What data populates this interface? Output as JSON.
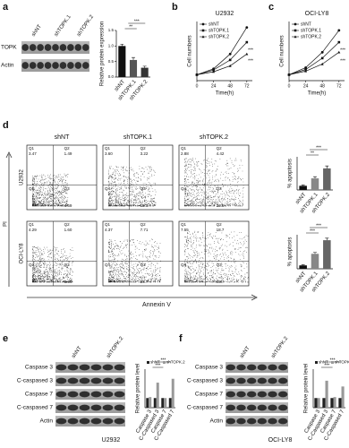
{
  "figure": {
    "panel_letters": [
      "a",
      "b",
      "c",
      "d",
      "e",
      "f"
    ],
    "blot_a": {
      "lanes": [
        "shNT",
        "shTOPK.1",
        "shTOPK.2"
      ],
      "rows": [
        "TOPK",
        "Actin"
      ]
    },
    "flow": {
      "columns": [
        "shNT",
        "shTOPK.1",
        "shTOPK.2"
      ],
      "rows": [
        "U2932",
        "OCI-LY8"
      ],
      "y_label": "PI",
      "x_label": "Annexin V",
      "quadrant_names": [
        "Q1",
        "Q2",
        "Q3",
        "Q4"
      ],
      "percentages": [
        [
          [
            "3.47",
            "1.49",
            "4.69"
          ],
          [
            "3.60",
            "3.22",
            "12.3"
          ],
          [
            "2.88",
            "4.42",
            "23.5"
          ]
        ],
        [
          [
            "4.29",
            "1.60",
            "3.66"
          ],
          [
            "4.37",
            "7.71",
            "15.7"
          ],
          [
            "7.55",
            "18.7",
            "25.7"
          ]
        ]
      ]
    },
    "blot_e": {
      "lanes": [
        "shNT",
        "shTOPK.2"
      ],
      "rows": [
        "Caspase 3",
        "C-caspased 3",
        "Caspase 7",
        "C-caspased 7",
        "Actin"
      ]
    },
    "blot_f": {
      "lanes": [
        "shNT",
        "shTOPK.2"
      ],
      "rows": [
        "Caspase 3",
        "C-caspased 3",
        "Caspase 7",
        "C-caspased 7",
        "Actin"
      ]
    }
  },
  "chart_data": [
    {
      "type": "bar",
      "y_label": "Relative protein expression",
      "categories": [
        "shNT",
        "shTOPK.1",
        "shTOPK.2"
      ],
      "values": [
        1.0,
        0.55,
        0.3
      ],
      "errors": [
        0.06,
        0.08,
        0.05
      ],
      "colors": [
        "#111111",
        "#555555",
        "#333333"
      ],
      "ylim": [
        0,
        1.5
      ],
      "yticks": [
        {
          "value": 0,
          "label": "0.0"
        },
        {
          "value": 0.5,
          "label": "0.5"
        },
        {
          "value": 1,
          "label": "1.0"
        },
        {
          "value": 1.5,
          "label": "1.5"
        }
      ],
      "annotations": [
        "**",
        "***"
      ]
    },
    {
      "type": "line",
      "title": "U2932",
      "x_label": "Time(h)",
      "y_label": "Cell numbers",
      "x": [
        0,
        24,
        48,
        72
      ],
      "xlim": [
        0,
        80
      ],
      "xticks": [
        0,
        24,
        48,
        72
      ],
      "ylim": [
        0,
        10
      ],
      "series": [
        {
          "name": "shNT",
          "color": "#111111",
          "values": [
            1,
            2,
            4.5,
            9
          ]
        },
        {
          "name": "shTOPK.1",
          "color": "#111111",
          "values": [
            1,
            1.8,
            3.5,
            6.5
          ]
        },
        {
          "name": "shTOPK.2",
          "color": "#111111",
          "values": [
            1,
            1.5,
            2.5,
            4.5
          ]
        }
      ],
      "annotations": [
        "***",
        "***"
      ]
    },
    {
      "type": "line",
      "title": "OCI-LY8",
      "x_label": "Time(h)",
      "y_label": "Cell numbers",
      "x": [
        0,
        24,
        48,
        72
      ],
      "xlim": [
        0,
        80
      ],
      "xticks": [
        0,
        24,
        48,
        72
      ],
      "ylim": [
        0,
        10
      ],
      "series": [
        {
          "name": "shNT",
          "color": "#111111",
          "values": [
            1,
            2.2,
            4.8,
            8.5
          ]
        },
        {
          "name": "shTOPK.1",
          "color": "#111111",
          "values": [
            1,
            1.9,
            3.8,
            6.5
          ]
        },
        {
          "name": "shTOPK.2",
          "color": "#111111",
          "values": [
            1,
            1.6,
            2.8,
            4.8
          ]
        }
      ],
      "annotations": [
        "***",
        "***"
      ]
    },
    {
      "type": "bar",
      "y_label": "% apoptosis",
      "categories": [
        "shNT",
        "shTOPK.1",
        "shTOPK.2"
      ],
      "values": [
        5,
        14,
        26
      ],
      "errors": [
        1,
        2,
        3
      ],
      "colors": [
        "#111111",
        "#888888",
        "#666666"
      ],
      "ylim": [
        0,
        40
      ],
      "annotations": [
        "**",
        "***"
      ]
    },
    {
      "type": "bar",
      "y_label": "% apoptosis",
      "categories": [
        "shNT",
        "shTOPK.1",
        "shTOPK.2"
      ],
      "values": [
        5,
        22,
        42
      ],
      "errors": [
        1,
        2,
        3
      ],
      "colors": [
        "#111111",
        "#888888",
        "#666666"
      ],
      "ylim": [
        0,
        50
      ],
      "annotations": [
        "***",
        "***"
      ]
    },
    {
      "type": "grouped-bar",
      "x_label": "U2932",
      "y_label": "Relative protein level",
      "categories": [
        "Caspase 3",
        "C-Caspased 3",
        "Caspase 7",
        "C-Caspased 7"
      ],
      "ylim": [
        0,
        4
      ],
      "series": [
        {
          "name": "shNT",
          "color": "#222222",
          "values": [
            1,
            1,
            1,
            1
          ]
        },
        {
          "name": "shTOPK.2",
          "color": "#999999",
          "values": [
            1.1,
            2.6,
            1.0,
            3.0
          ]
        }
      ],
      "annotations": [
        "***",
        "***"
      ]
    },
    {
      "type": "grouped-bar",
      "x_label": "OCI-LY8",
      "y_label": "Relative protein level",
      "categories": [
        "Caspase 3",
        "C-Caspased 3",
        "Caspase 7",
        "C-Caspased 7"
      ],
      "ylim": [
        0,
        4
      ],
      "series": [
        {
          "name": "shNT",
          "color": "#222222",
          "values": [
            1,
            1,
            1,
            1
          ]
        },
        {
          "name": "shTOPK.2",
          "color": "#999999",
          "values": [
            1.0,
            2.8,
            1.1,
            2.2
          ]
        }
      ],
      "annotations": [
        "***",
        "***"
      ]
    }
  ]
}
